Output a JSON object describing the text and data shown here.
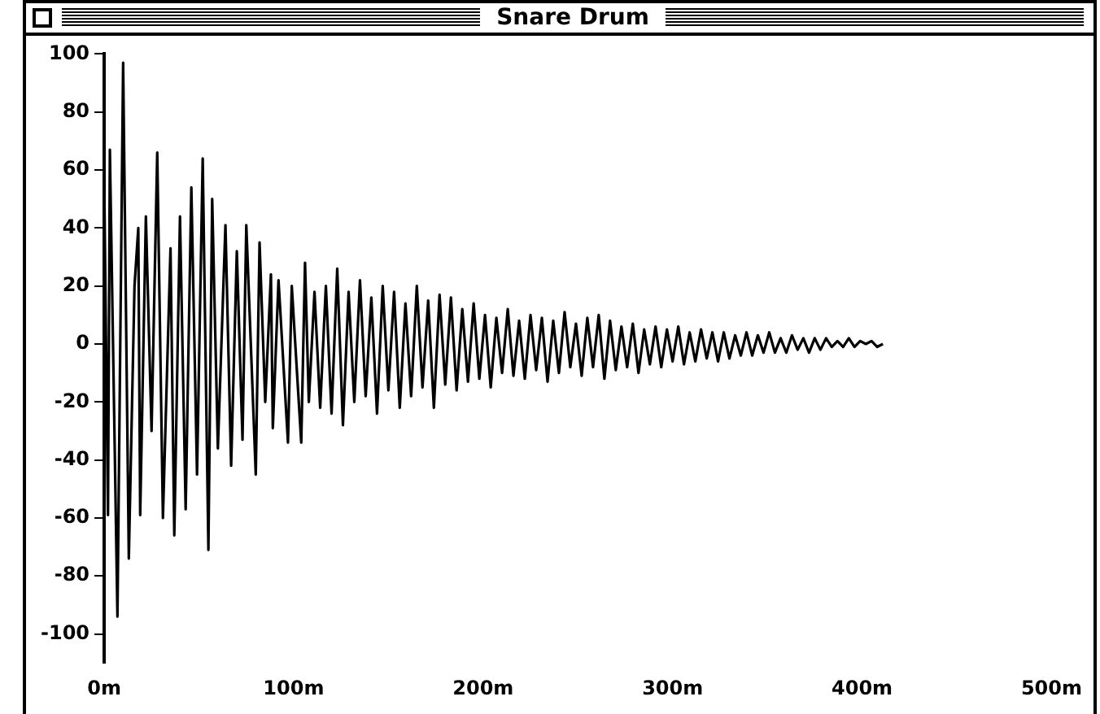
{
  "chart_data": {
    "type": "line",
    "title": "Snare Drum",
    "x": [
      0,
      2,
      3,
      7,
      10,
      13,
      16,
      18,
      19,
      22,
      25,
      28,
      31,
      35,
      37,
      40,
      43,
      46,
      49,
      52,
      55,
      57,
      60,
      64,
      67,
      70,
      73,
      75,
      80,
      82,
      85,
      88,
      89,
      92,
      97,
      99,
      104,
      106,
      108,
      111,
      114,
      117,
      120,
      123,
      126,
      129,
      132,
      135,
      138,
      141,
      144,
      147,
      150,
      153,
      156,
      159,
      162,
      165,
      168,
      171,
      174,
      177,
      180,
      183,
      186,
      189,
      192,
      195,
      198,
      201,
      204,
      207,
      210,
      213,
      216,
      219,
      222,
      225,
      228,
      231,
      234,
      237,
      240,
      243,
      246,
      249,
      252,
      255,
      258,
      261,
      264,
      267,
      270,
      273,
      276,
      279,
      282,
      285,
      288,
      291,
      294,
      297,
      300,
      303,
      306,
      309,
      312,
      315,
      318,
      321,
      324,
      327,
      330,
      333,
      336,
      339,
      342,
      345,
      348,
      351,
      354,
      357,
      360,
      363,
      366,
      369,
      372,
      375,
      378,
      381,
      384,
      387,
      390,
      393,
      396,
      399,
      402,
      405,
      408,
      411
    ],
    "series": [
      {
        "color": "#000000",
        "values": [
          57,
          -59,
          67,
          -94,
          97,
          -74,
          20,
          40,
          -59,
          44,
          -30,
          66,
          -60,
          33,
          -66,
          44,
          -57,
          54,
          -45,
          64,
          -71,
          50,
          -36,
          41,
          -42,
          32,
          -33,
          41,
          -45,
          35,
          -20,
          24,
          -29,
          22,
          -34,
          20,
          -34,
          28,
          -20,
          18,
          -22,
          20,
          -24,
          26,
          -28,
          18,
          -20,
          22,
          -18,
          16,
          -24,
          20,
          -16,
          18,
          -22,
          14,
          -18,
          20,
          -15,
          15,
          -22,
          17,
          -14,
          16,
          -16,
          12,
          -13,
          14,
          -12,
          10,
          -15,
          9,
          -10,
          12,
          -11,
          8,
          -12,
          10,
          -9,
          9,
          -13,
          8,
          -10,
          11,
          -8,
          7,
          -11,
          9,
          -8,
          10,
          -12,
          8,
          -9,
          6,
          -8,
          7,
          -10,
          5,
          -7,
          6,
          -8,
          5,
          -6,
          6,
          -7,
          4,
          -6,
          5,
          -5,
          4,
          -6,
          4,
          -5,
          3,
          -4,
          4,
          -4,
          3,
          -3,
          4,
          -3,
          2,
          -3,
          3,
          -2,
          2,
          -3,
          2,
          -2,
          2,
          -1,
          1,
          -1,
          2,
          -1,
          1,
          0,
          1,
          -1,
          0
        ]
      }
    ],
    "xlim": [
      0,
      500
    ],
    "xticks": [
      {
        "value": 0,
        "label": "0m"
      },
      {
        "value": 100,
        "label": "100m"
      },
      {
        "value": 200,
        "label": "200m"
      },
      {
        "value": 300,
        "label": "300m"
      },
      {
        "value": 400,
        "label": "400m"
      },
      {
        "value": 500,
        "label": "500m"
      }
    ],
    "ylim": [
      -110,
      100
    ],
    "yticks": [
      -100,
      -80,
      -60,
      -40,
      -20,
      0,
      20,
      40,
      60,
      80,
      100
    ],
    "grid": false,
    "legend": false,
    "marker": "none",
    "line_style": "solid"
  }
}
